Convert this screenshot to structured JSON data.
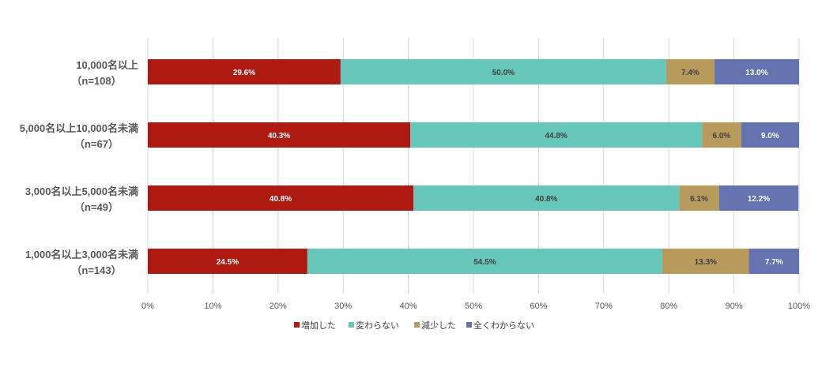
{
  "chart_data": {
    "type": "bar",
    "orientation": "horizontal",
    "stacked": "percent",
    "categories": [
      {
        "label": "10,000名以上",
        "n": "（n=108）"
      },
      {
        "label": "5,000名以上10,000名未満",
        "n": "（n=67）"
      },
      {
        "label": "3,000名以上5,000名未満",
        "n": "（n=49）"
      },
      {
        "label": "1,000名以上3,000名未満",
        "n": "（n=143）"
      }
    ],
    "series": [
      {
        "name": "増加した",
        "color": "#AE1912",
        "label_color": "#FFFFFF",
        "values": [
          29.6,
          40.3,
          40.8,
          24.5
        ],
        "labels": [
          "29.6%",
          "40.3%",
          "40.8%",
          "24.5%"
        ]
      },
      {
        "name": "変わらない",
        "color": "#66C6B9",
        "label_color": "#404040",
        "values": [
          50.0,
          44.8,
          40.8,
          54.5
        ],
        "labels": [
          "50.0%",
          "44.8%",
          "40.8%",
          "54.5%"
        ]
      },
      {
        "name": "減少した",
        "color": "#B99A5D",
        "label_color": "#404040",
        "values": [
          7.4,
          6.0,
          6.1,
          13.3
        ],
        "labels": [
          "7.4%",
          "6.0%",
          "6.1%",
          "13.3%"
        ]
      },
      {
        "name": "全くわからない",
        "color": "#6473AF",
        "label_color": "#FFFFFF",
        "values": [
          13.0,
          9.0,
          12.2,
          7.7
        ],
        "labels": [
          "13.0%",
          "9.0%",
          "12.2%",
          "7.7%"
        ]
      }
    ],
    "xaxis": {
      "range": [
        0,
        100
      ],
      "ticks": [
        "0%",
        "10%",
        "20%",
        "30%",
        "40%",
        "50%",
        "60%",
        "70%",
        "80%",
        "90%",
        "100%"
      ]
    },
    "title": "",
    "xlabel": "",
    "ylabel": "",
    "grid": true,
    "legend_position": "bottom"
  }
}
